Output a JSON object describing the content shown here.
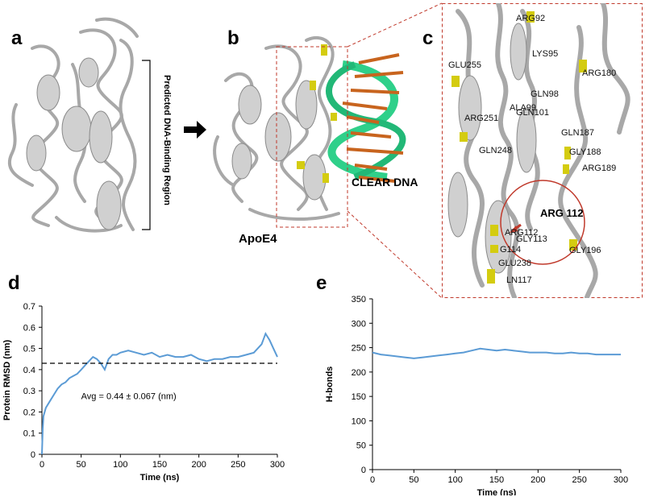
{
  "figure": {
    "panels": {
      "a": {
        "letter": "a",
        "bracket_label": "Predicted DNA-Binding Region"
      },
      "b": {
        "letter": "b",
        "protein_label": "ApoE4",
        "dna_label": "CLEAR DNA"
      },
      "c": {
        "letter": "c",
        "highlight_label": "ARG 112",
        "residues": [
          "ARG92",
          "LYS95",
          "GLU255",
          "ARG180",
          "GLN98",
          "ALA99",
          "GLN101",
          "ARG251",
          "GLN187",
          "GLY188",
          "GLN248",
          "ARG189",
          "ARG112",
          "GLY113",
          "G114",
          "GLY196",
          "GLU238",
          "LN117"
        ]
      },
      "d": {
        "letter": "d"
      },
      "e": {
        "letter": "e"
      }
    },
    "colors": {
      "ribbon": "#c8c8c8",
      "highlight_residue": "#d4cc10",
      "dna_backbone": "#2fd08a",
      "dna_bases": "#c8641e",
      "zoom_frame": "#c0392b",
      "trace": "#5b9bd5",
      "circle": "#c0392b"
    }
  },
  "chart_data": [
    {
      "type": "line",
      "title": "",
      "xlabel": "Time (ns)",
      "ylabel": "Protein RMSD (nm)",
      "xlim": [
        0,
        300
      ],
      "ylim": [
        0,
        0.7
      ],
      "xticks": [
        "0",
        "50",
        "100",
        "150",
        "200",
        "250",
        "300"
      ],
      "yticks": [
        "0",
        "0.1",
        "0.2",
        "0.3",
        "0.4",
        "0.5",
        "0.6",
        "0.7"
      ],
      "grid": false,
      "annotation": "Avg = 0.44 ± 0.067 (nm)",
      "reference_line": {
        "y": 0.43,
        "style": "dashed"
      },
      "series": [
        {
          "x": [
            0,
            1,
            2,
            5,
            10,
            15,
            20,
            25,
            30,
            35,
            40,
            45,
            50,
            55,
            60,
            65,
            70,
            75,
            80,
            85,
            90,
            95,
            100,
            110,
            120,
            130,
            140,
            150,
            160,
            170,
            180,
            190,
            200,
            210,
            220,
            230,
            240,
            250,
            260,
            270,
            275,
            280,
            285,
            290,
            295,
            300
          ],
          "y": [
            0,
            0.12,
            0.18,
            0.22,
            0.25,
            0.28,
            0.31,
            0.33,
            0.34,
            0.36,
            0.37,
            0.38,
            0.4,
            0.42,
            0.44,
            0.46,
            0.45,
            0.43,
            0.4,
            0.45,
            0.47,
            0.47,
            0.48,
            0.49,
            0.48,
            0.47,
            0.48,
            0.46,
            0.47,
            0.46,
            0.46,
            0.47,
            0.45,
            0.44,
            0.45,
            0.45,
            0.46,
            0.46,
            0.47,
            0.48,
            0.5,
            0.52,
            0.57,
            0.54,
            0.5,
            0.46
          ]
        }
      ]
    },
    {
      "type": "line",
      "title": "",
      "xlabel": "Time (ns)",
      "ylabel": "H-bonds",
      "xlim": [
        0,
        300
      ],
      "ylim": [
        0,
        350
      ],
      "xticks": [
        "0",
        "50",
        "100",
        "150",
        "200",
        "250",
        "300"
      ],
      "yticks": [
        "0",
        "50",
        "100",
        "150",
        "200",
        "250",
        "300",
        "350"
      ],
      "grid": false,
      "series": [
        {
          "x": [
            0,
            10,
            20,
            30,
            40,
            50,
            60,
            70,
            80,
            90,
            100,
            110,
            120,
            130,
            140,
            150,
            160,
            170,
            180,
            190,
            200,
            210,
            220,
            230,
            240,
            250,
            260,
            270,
            280,
            290,
            300
          ],
          "y": [
            240,
            236,
            234,
            232,
            230,
            228,
            230,
            232,
            234,
            236,
            238,
            240,
            244,
            248,
            246,
            244,
            246,
            244,
            242,
            240,
            240,
            240,
            238,
            238,
            240,
            238,
            238,
            236,
            236,
            236,
            236
          ]
        }
      ]
    }
  ]
}
